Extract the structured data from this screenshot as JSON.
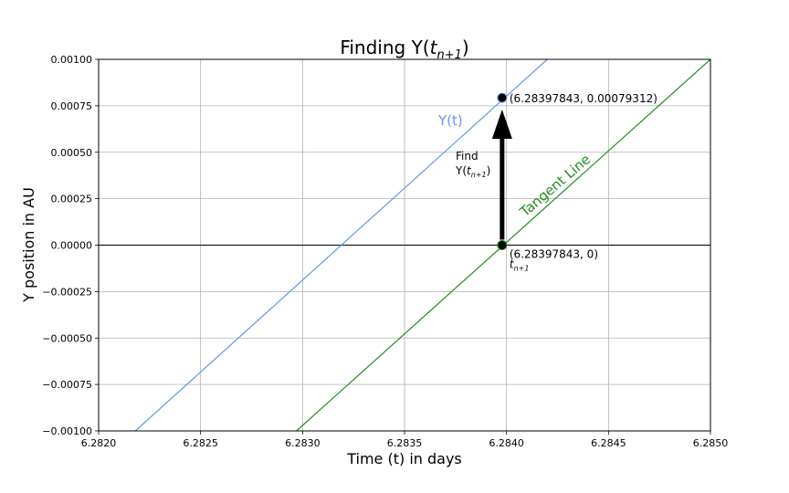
{
  "chart_data": {
    "type": "line",
    "title_prefix": "Finding Y(",
    "title_math_t": "t",
    "title_math_sub": "n+1",
    "title_suffix": ")",
    "xlabel": "Time (t) in days",
    "ylabel": "Y position in AU",
    "xlim": [
      6.282,
      6.285
    ],
    "ylim": [
      -0.001,
      0.001
    ],
    "grid": true,
    "xticks": [
      6.282,
      6.2825,
      6.283,
      6.2835,
      6.284,
      6.2845,
      6.285
    ],
    "xtick_labels": [
      "6.2820",
      "6.2825",
      "6.2830",
      "6.2835",
      "6.2840",
      "6.2845",
      "6.2850"
    ],
    "yticks": [
      -0.001,
      -0.00075,
      -0.0005,
      -0.00025,
      0,
      0.00025,
      0.0005,
      0.00075,
      0.001
    ],
    "ytick_labels": [
      "−0.00100",
      "−0.00075",
      "−0.00050",
      "−0.00025",
      "0.00000",
      "0.00025",
      "0.00050",
      "0.00075",
      "0.00100"
    ],
    "series": [
      {
        "name": "Y(t)",
        "color": "#6495ed",
        "x": [
          6.28218,
          6.2842
        ],
        "y": [
          -0.001,
          0.001
        ]
      },
      {
        "name": "Tangent Line",
        "color": "#228b22",
        "x": [
          6.28297,
          6.285
        ],
        "y": [
          -0.001,
          0.001
        ]
      }
    ],
    "horizontal_line": {
      "y": 0,
      "color": "#000000"
    },
    "points": [
      {
        "x": 6.28397843,
        "y": 0.00079312,
        "label": "(6.28397843, 0.00079312)"
      },
      {
        "x": 6.28397843,
        "y": 0,
        "label": "(6.28397843, 0)"
      }
    ],
    "point_sublabel_t": "t",
    "point_sublabel_sub": "n+1",
    "arrow": {
      "x": 6.28397843,
      "y_from": 0,
      "y_to": 0.00073
    },
    "annotation_find": "Find",
    "annotation_y_prefix": "Y(",
    "annotation_t": "t",
    "annotation_sub": "n+1",
    "annotation_suffix": ")",
    "series_label_yt": "Y(t)",
    "series_label_tangent": "Tangent Line"
  }
}
